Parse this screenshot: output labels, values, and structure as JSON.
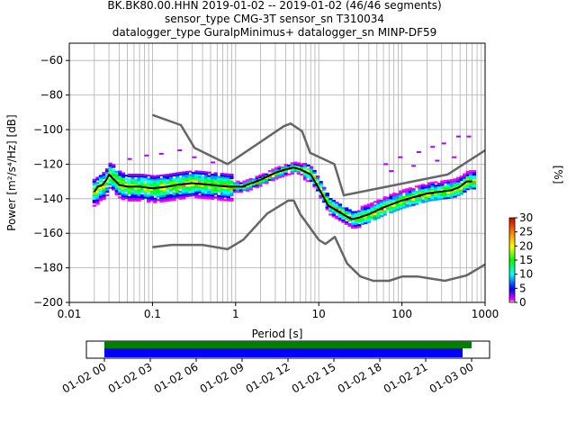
{
  "title_lines": [
    "BK.BK80.00.HHN   2019-01-02 -- 2019-01-02  (46/46 segments)",
    "sensor_type CMG-3T sensor_sn T310034",
    "datalogger_type GuralpMinimus+ datalogger_sn MINP-DF59"
  ],
  "colorbar": {
    "label": "[%]",
    "ticks": [
      "0",
      "5",
      "10",
      "15",
      "20",
      "25",
      "30"
    ],
    "range": [
      0,
      30
    ],
    "colormap": "pqlx"
  },
  "timeline": {
    "ticks": [
      "01-02 00",
      "01-02 03",
      "01-02 06",
      "01-02 09",
      "01-02 12",
      "01-02 15",
      "01-02 18",
      "01-02 21",
      "01-03 00"
    ],
    "bar_colors": [
      "#008000",
      "#0000ff"
    ]
  },
  "chart_data": {
    "type": "line",
    "xlabel": "Period [s]",
    "ylabel": "Power [m²/s⁴/Hz] [dB]",
    "xscale": "log",
    "xlim": [
      0.01,
      1000
    ],
    "ylim": [
      -200,
      -50
    ],
    "x_ticks": [
      "0.01",
      "0.1",
      "1",
      "10",
      "100",
      "1000"
    ],
    "y_ticks": [
      "−200",
      "−180",
      "−160",
      "−140",
      "−120",
      "−100",
      "−80",
      "−60"
    ],
    "grid": true,
    "series": [
      {
        "role": "nhnm",
        "color": "#666666",
        "x": [
          0.1,
          0.22,
          0.32,
          0.8,
          3.8,
          4.6,
          6.3,
          7.9,
          15.4,
          20.0,
          354.8,
          1000
        ],
        "y": [
          -91.5,
          -97.4,
          -110.5,
          -120.0,
          -98.0,
          -96.5,
          -101.0,
          -113.5,
          -120.0,
          -138.0,
          -126.0,
          -112.0
        ]
      },
      {
        "role": "nlnm",
        "color": "#666666",
        "x": [
          0.1,
          0.17,
          0.4,
          0.8,
          1.24,
          2.4,
          4.3,
          5.0,
          6.0,
          10.0,
          12.0,
          15.6,
          21.9,
          31.6,
          45.0,
          70.0,
          101.0,
          154.0,
          328.0,
          600.0,
          1000.0
        ],
        "y": [
          -168.0,
          -166.7,
          -166.7,
          -169.2,
          -163.7,
          -148.6,
          -141.1,
          -141.1,
          -149.0,
          -163.8,
          -166.2,
          -162.1,
          -177.5,
          -185.0,
          -187.5,
          -187.5,
          -185.0,
          -185.0,
          -187.5,
          -184.4,
          -178.0
        ]
      },
      {
        "role": "mode",
        "color": "#000000",
        "x": [
          0.02,
          0.022,
          0.025,
          0.028,
          0.03,
          0.033,
          0.04,
          0.05,
          0.07,
          0.1,
          0.15,
          0.2,
          0.3,
          0.5,
          0.8,
          1.2,
          2.0,
          3.0,
          4.0,
          5.0,
          6.0,
          8.0,
          10.0,
          13.0,
          18.0,
          25.0,
          30.0,
          40.0,
          60.0,
          100.0,
          200.0,
          400.0,
          500.0,
          600.0,
          700.0
        ],
        "y": [
          -136,
          -133,
          -132,
          -129,
          -126,
          -128,
          -132,
          -133,
          -133,
          -134,
          -133,
          -132,
          -131,
          -132,
          -133,
          -133,
          -129,
          -125,
          -123,
          -122,
          -123,
          -126,
          -134,
          -144,
          -148,
          -152,
          -151,
          -149,
          -145,
          -141,
          -137,
          -135,
          -133,
          -130,
          -130
        ]
      }
    ],
    "scatter_spread": {
      "description_values_dB": {
        "short_period_band": [
          -145,
          -115
        ],
        "microseism_peak": [
          -125,
          -120
        ],
        "long_period_band": [
          -157,
          -104
        ]
      }
    }
  }
}
